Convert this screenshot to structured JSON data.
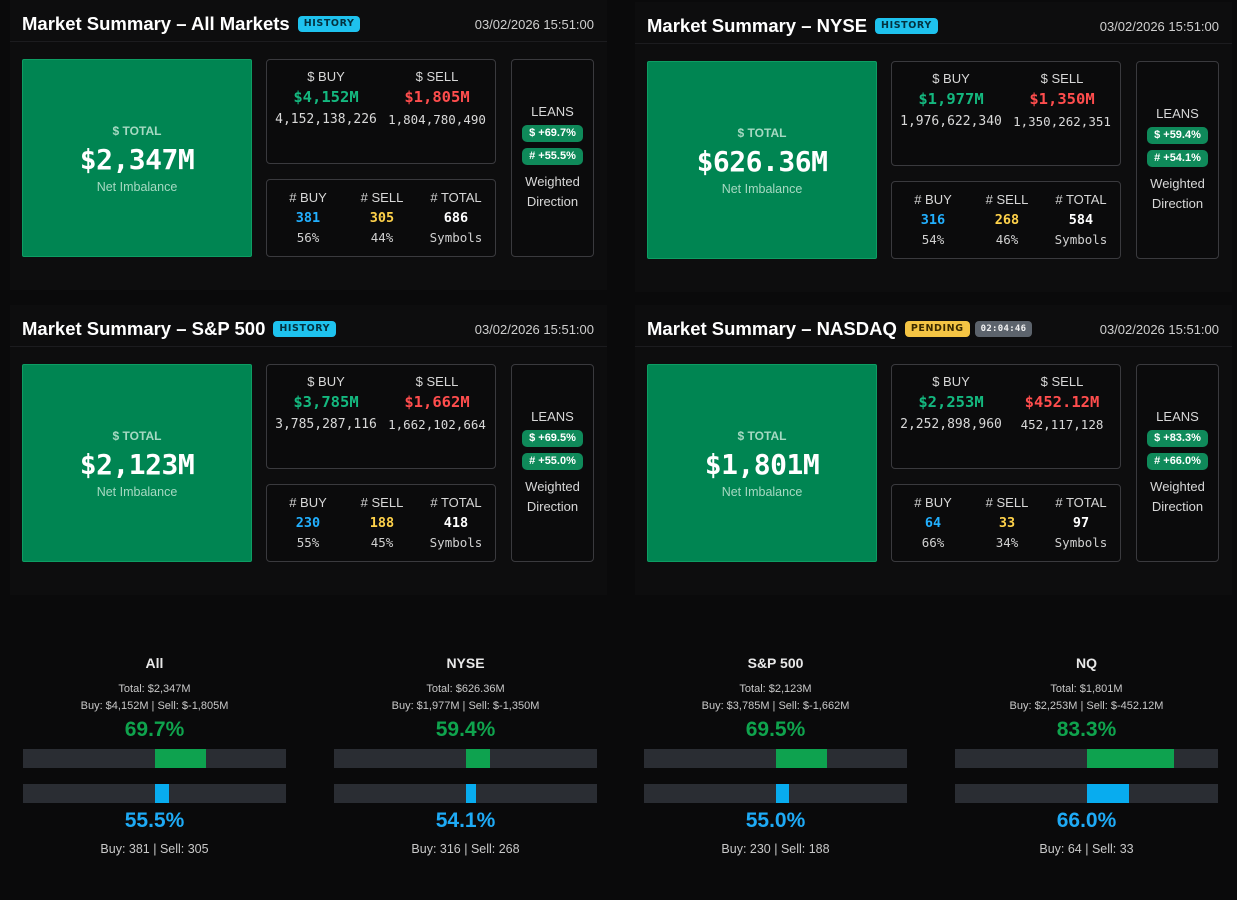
{
  "panels": {
    "all": {
      "title": "Market Summary – All Markets",
      "badge": "HISTORY",
      "timestamp": "03/02/2026 15:51:00",
      "total_label": "$ TOTAL",
      "total": "$2,347M",
      "total_sub": "Net Imbalance",
      "buy_label": "$ BUY",
      "buy": "$4,152M",
      "buy_exact": "4,152,138,226",
      "sell_label": "$ SELL",
      "sell": "$1,805M",
      "sell_exact": "1,804,780,490",
      "nbuy_label": "# BUY",
      "nbuy": "381",
      "nbuy_pct": "56%",
      "nsell_label": "# SELL",
      "nsell": "305",
      "nsell_pct": "44%",
      "ntotal_label": "# TOTAL",
      "ntotal": "686",
      "ntotal_sub": "Symbols",
      "leans_label": "LEANS",
      "lean_dollar": "$ +69.7%",
      "lean_count": "# +55.5%",
      "weighted": "Weighted Direction"
    },
    "nyse": {
      "title": "Market Summary – NYSE",
      "badge": "HISTORY",
      "timestamp": "03/02/2026 15:51:00",
      "total_label": "$ TOTAL",
      "total": "$626.36M",
      "total_sub": "Net Imbalance",
      "buy_label": "$ BUY",
      "buy": "$1,977M",
      "buy_exact": "1,976,622,340",
      "sell_label": "$ SELL",
      "sell": "$1,350M",
      "sell_exact": "1,350,262,351",
      "nbuy_label": "# BUY",
      "nbuy": "316",
      "nbuy_pct": "54%",
      "nsell_label": "# SELL",
      "nsell": "268",
      "nsell_pct": "46%",
      "ntotal_label": "# TOTAL",
      "ntotal": "584",
      "ntotal_sub": "Symbols",
      "leans_label": "LEANS",
      "lean_dollar": "$ +59.4%",
      "lean_count": "# +54.1%",
      "weighted": "Weighted Direction"
    },
    "sp": {
      "title": "Market Summary – S&P 500",
      "badge": "HISTORY",
      "timestamp": "03/02/2026 15:51:00",
      "total_label": "$ TOTAL",
      "total": "$2,123M",
      "total_sub": "Net Imbalance",
      "buy_label": "$ BUY",
      "buy": "$3,785M",
      "buy_exact": "3,785,287,116",
      "sell_label": "$ SELL",
      "sell": "$1,662M",
      "sell_exact": "1,662,102,664",
      "nbuy_label": "# BUY",
      "nbuy": "230",
      "nbuy_pct": "55%",
      "nsell_label": "# SELL",
      "nsell": "188",
      "nsell_pct": "45%",
      "ntotal_label": "# TOTAL",
      "ntotal": "418",
      "ntotal_sub": "Symbols",
      "leans_label": "LEANS",
      "lean_dollar": "$ +69.5%",
      "lean_count": "# +55.0%",
      "weighted": "Weighted Direction"
    },
    "nq": {
      "title": "Market Summary – NASDAQ",
      "badge": "PENDING",
      "timer": "02:04:46",
      "timestamp": "03/02/2026 15:51:00",
      "total_label": "$ TOTAL",
      "total": "$1,801M",
      "total_sub": "Net Imbalance",
      "buy_label": "$ BUY",
      "buy": "$2,253M",
      "buy_exact": "2,252,898,960",
      "sell_label": "$ SELL",
      "sell": "$452.12M",
      "sell_exact": "452,117,128",
      "nbuy_label": "# BUY",
      "nbuy": "64",
      "nbuy_pct": "66%",
      "nsell_label": "# SELL",
      "nsell": "33",
      "nsell_pct": "34%",
      "ntotal_label": "# TOTAL",
      "ntotal": "97",
      "ntotal_sub": "Symbols",
      "leans_label": "LEANS",
      "lean_dollar": "$ +83.3%",
      "lean_count": "# +66.0%",
      "weighted": "Weighted Direction"
    }
  },
  "summaries": [
    {
      "name": "All",
      "total": "Total: $2,347M",
      "buy_sell": "Buy: $4,152M | Sell: $-1,805M",
      "dollar_pct": "69.7%",
      "dollar_lean": 0.697,
      "count_pct": "55.5%",
      "count_lean": 0.555,
      "counts": "Buy: 381 | Sell: 305"
    },
    {
      "name": "NYSE",
      "total": "Total: $626.36M",
      "buy_sell": "Buy: $1,977M | Sell: $-1,350M",
      "dollar_pct": "59.4%",
      "dollar_lean": 0.594,
      "count_pct": "54.1%",
      "count_lean": 0.541,
      "counts": "Buy: 316 | Sell: 268"
    },
    {
      "name": "S&P 500",
      "total": "Total: $2,123M",
      "buy_sell": "Buy: $3,785M | Sell: $-1,662M",
      "dollar_pct": "69.5%",
      "dollar_lean": 0.695,
      "count_pct": "55.0%",
      "count_lean": 0.55,
      "counts": "Buy: 230 | Sell: 188"
    },
    {
      "name": "NQ",
      "total": "Total: $1,801M",
      "buy_sell": "Buy: $2,253M | Sell: $-452.12M",
      "dollar_pct": "83.3%",
      "dollar_lean": 0.833,
      "count_pct": "66.0%",
      "count_lean": 0.66,
      "counts": "Buy: 64 | Sell: 33"
    }
  ],
  "colors": {
    "buy_green": "#14b87f",
    "sell_red": "#ff4d4d",
    "count_blue": "#22b0ff",
    "count_yellow": "#ffd24a",
    "total_bg": "#008552",
    "history_badge": "#1ec2ee",
    "pending_badge": "#f4c444"
  }
}
